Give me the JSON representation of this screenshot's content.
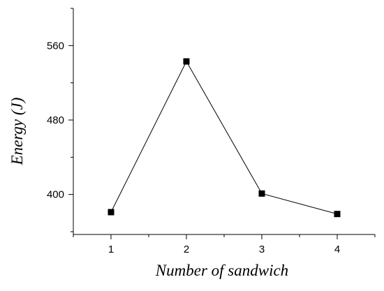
{
  "chart_data": {
    "type": "line",
    "title": "",
    "xlabel": "Number of sandwich",
    "ylabel": "Energy (J)",
    "x": [
      1,
      2,
      3,
      4
    ],
    "x_tick_labels": [
      "1",
      "2",
      "3",
      "4"
    ],
    "y_tick_labels": [
      "400",
      "480",
      "560"
    ],
    "y_ticks": [
      400,
      480,
      560
    ],
    "xlim": [
      0.5,
      4.5
    ],
    "ylim": [
      357,
      600
    ],
    "series": [
      {
        "values": [
          381,
          543,
          401,
          379
        ]
      }
    ],
    "marker": "square",
    "grid": false,
    "legend": "none",
    "colors": {
      "line": "#000000",
      "marker": "#000000"
    }
  }
}
